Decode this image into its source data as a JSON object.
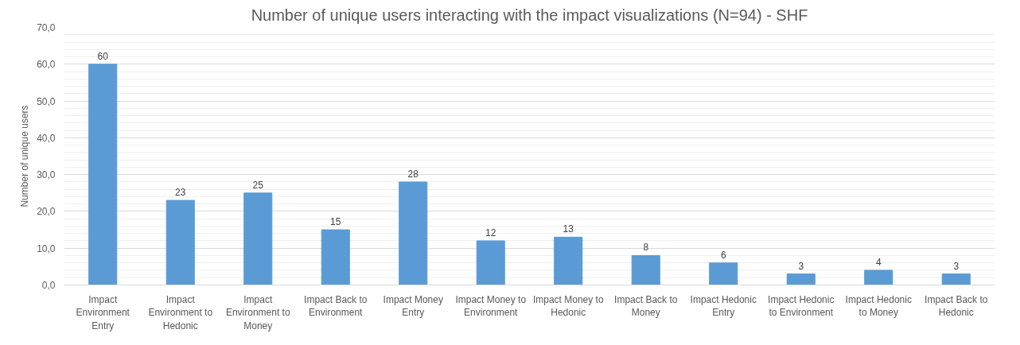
{
  "chart_data": {
    "type": "bar",
    "title": "Number of unique users interacting with the impact visualizations (N=94) - SHF",
    "ylabel": "Number of unique users",
    "categories": [
      "Impact Environment Entry",
      "Impact Environment to Hedonic",
      "Impact Environment to Money",
      "Impact Back to Environment",
      "Impact Money Entry",
      "Impact Money to Environment",
      "Impact Money to Hedonic",
      "Impact Back to Money",
      "Impact Hedonic Entry",
      "Impact Hedonic to Environment",
      "Impact Hedonic to Money",
      "Impact Back to Hedonic"
    ],
    "values": [
      60,
      23,
      25,
      15,
      28,
      12,
      13,
      8,
      6,
      3,
      4,
      3
    ],
    "color": "#5b9bd5",
    "ylim": [
      0,
      70
    ],
    "yticks": [
      {
        "value": 0,
        "label": "0,0"
      },
      {
        "value": 10,
        "label": "10,0"
      },
      {
        "value": 20,
        "label": "20,0"
      },
      {
        "value": 30,
        "label": "30,0"
      },
      {
        "value": 40,
        "label": "40,0"
      },
      {
        "value": 50,
        "label": "50,0"
      },
      {
        "value": 60,
        "label": "60,0"
      },
      {
        "value": 70,
        "label": "70,0"
      }
    ],
    "grid": "y",
    "data_labels": true
  }
}
